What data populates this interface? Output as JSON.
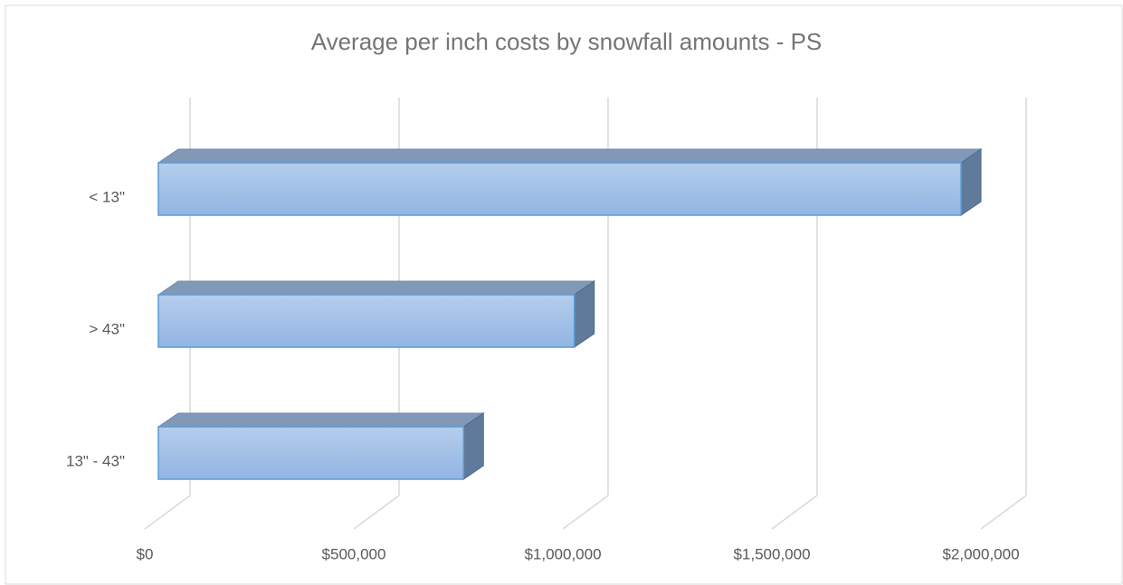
{
  "chart_data": {
    "type": "bar3d",
    "orientation": "horizontal",
    "title": "Average per inch costs by snowfall amounts - PS",
    "categories": [
      "< 13\"",
      "> 43\"",
      "13\" - 43\""
    ],
    "series": [
      {
        "name": "Average per inch cost",
        "color": "#9dc3e6",
        "values": [
          1920000,
          995000,
          730000
        ]
      }
    ],
    "xlim": [
      0,
      2000000
    ],
    "xticks": [
      {
        "value": 0,
        "label": "$0"
      },
      {
        "value": 500000,
        "label": "$500,000"
      },
      {
        "value": 1000000,
        "label": "$1,000,000"
      },
      {
        "value": 1500000,
        "label": "$1,500,000"
      },
      {
        "value": 2000000,
        "label": "$2,000,000"
      }
    ],
    "grid": true
  }
}
